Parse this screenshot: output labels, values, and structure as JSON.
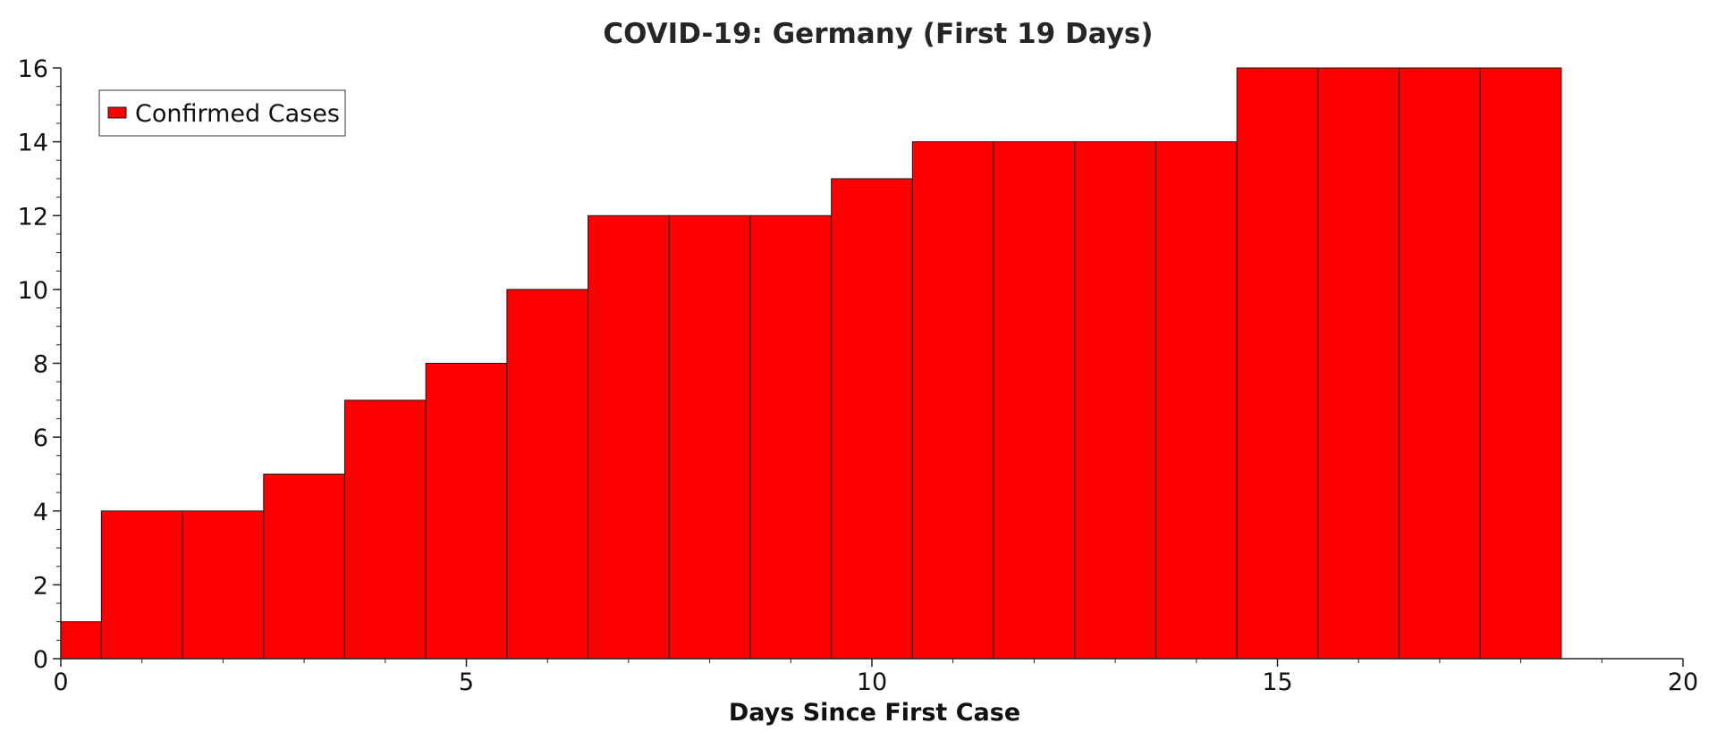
{
  "chart_data": {
    "type": "bar",
    "title": "COVID-19: Germany (First 19 Days)",
    "xlabel": "Days Since First Case",
    "ylabel": "",
    "x": [
      0,
      1,
      2,
      3,
      4,
      5,
      6,
      7,
      8,
      9,
      10,
      11,
      12,
      13,
      14,
      15,
      16,
      17,
      18
    ],
    "series": [
      {
        "name": "Confirmed Cases",
        "color": "#ff0000",
        "values": [
          1,
          4,
          4,
          5,
          7,
          8,
          10,
          12,
          12,
          12,
          13,
          14,
          14,
          14,
          14,
          16,
          16,
          16,
          16
        ]
      }
    ],
    "xlim": [
      0,
      20
    ],
    "ylim": [
      0,
      16
    ],
    "xticks": [
      0,
      5,
      10,
      15,
      20
    ],
    "yticks": [
      0,
      2,
      4,
      6,
      8,
      10,
      12,
      14,
      16
    ],
    "x_minor_step": 1,
    "y_minor_step": 0.5,
    "grid": false,
    "legend": "top-left",
    "bar_edge_color": "#1a1a1a"
  }
}
